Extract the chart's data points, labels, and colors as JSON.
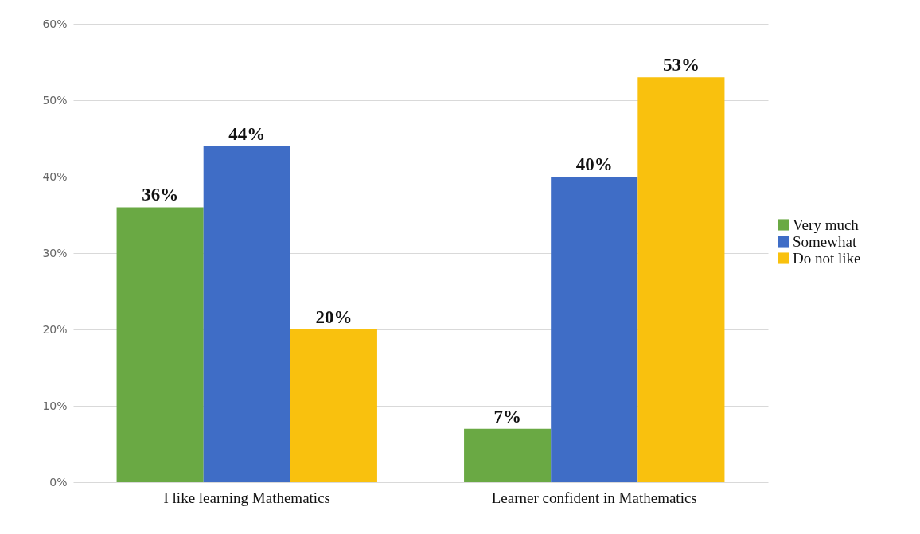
{
  "chart_data": {
    "type": "bar",
    "categories": [
      "I like learning Mathematics",
      "Learner confident in Mathematics"
    ],
    "series": [
      {
        "name": "Very much",
        "color": "#6aa944",
        "values": [
          36,
          7
        ],
        "value_labels": [
          "36%",
          "7%"
        ]
      },
      {
        "name": "Somewhat",
        "color": "#3f6dc6",
        "values": [
          44,
          40
        ],
        "value_labels": [
          "44%",
          "40%"
        ]
      },
      {
        "name": "Do not like",
        "color": "#f9c10e",
        "values": [
          20,
          53
        ],
        "value_labels": [
          "20%",
          "53%"
        ]
      }
    ],
    "ylim": [
      0,
      60
    ],
    "yticks": [
      {
        "value": 0,
        "label": "0%"
      },
      {
        "value": 10,
        "label": "10%"
      },
      {
        "value": 20,
        "label": "20%"
      },
      {
        "value": 30,
        "label": "30%"
      },
      {
        "value": 40,
        "label": "40%"
      },
      {
        "value": 50,
        "label": "50%"
      },
      {
        "value": 60,
        "label": "60%"
      }
    ],
    "grid": "y",
    "legend": "right"
  }
}
